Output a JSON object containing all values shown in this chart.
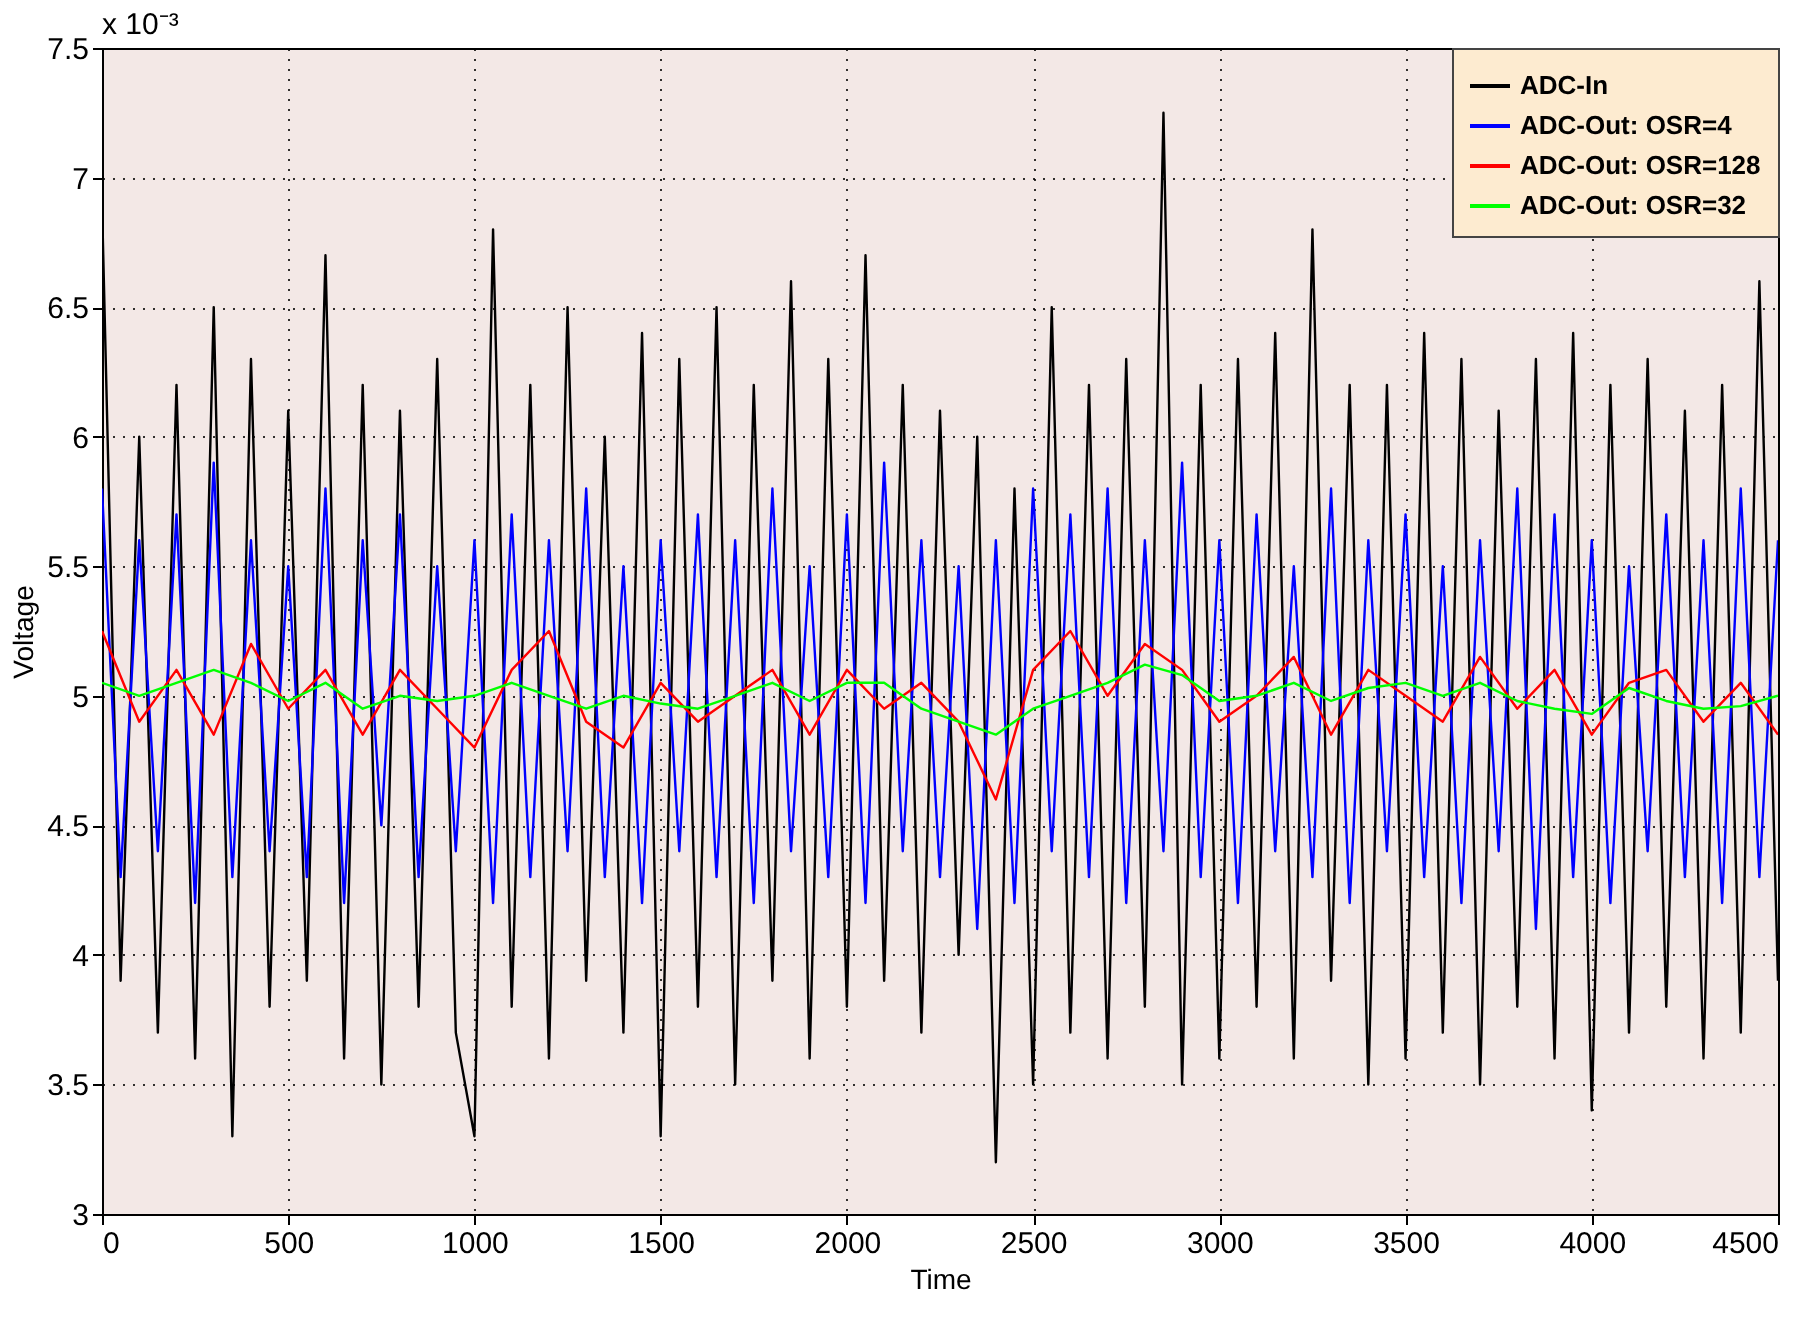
{
  "chart_data": {
    "type": "line",
    "xlabel": "Time",
    "ylabel": "Voltage",
    "annotations": [
      "x 10⁻³"
    ],
    "xlim": [
      0,
      4500
    ],
    "ylim": [
      3,
      7.5
    ],
    "xticks": [
      0,
      500,
      1000,
      1500,
      2000,
      2500,
      3000,
      3500,
      4000,
      4500
    ],
    "yticks": [
      3,
      3.5,
      4,
      4.5,
      5,
      5.5,
      6,
      6.5,
      7,
      7.5
    ],
    "grid": true,
    "legend": "top right",
    "line_style": "solid",
    "marker": "none",
    "series": [
      {
        "name": "ADC-In",
        "color": "#000000",
        "x": [
          0,
          50,
          100,
          150,
          200,
          250,
          300,
          350,
          400,
          450,
          500,
          550,
          600,
          650,
          700,
          750,
          800,
          850,
          900,
          950,
          1000,
          1050,
          1100,
          1150,
          1200,
          1250,
          1300,
          1350,
          1400,
          1450,
          1500,
          1550,
          1600,
          1650,
          1700,
          1750,
          1800,
          1850,
          1900,
          1950,
          2000,
          2050,
          2100,
          2150,
          2200,
          2250,
          2300,
          2350,
          2400,
          2450,
          2500,
          2550,
          2600,
          2650,
          2700,
          2750,
          2800,
          2850,
          2900,
          2950,
          3000,
          3050,
          3100,
          3150,
          3200,
          3250,
          3300,
          3350,
          3400,
          3450,
          3500,
          3550,
          3600,
          3650,
          3700,
          3750,
          3800,
          3850,
          3900,
          3950,
          4000,
          4050,
          4100,
          4150,
          4200,
          4250,
          4300,
          4350,
          4400,
          4450,
          4500
        ],
        "values": [
          6.9,
          3.9,
          6.0,
          3.7,
          6.2,
          3.6,
          6.5,
          3.3,
          6.3,
          3.8,
          6.1,
          3.9,
          6.7,
          3.6,
          6.2,
          3.5,
          6.1,
          3.8,
          6.3,
          3.7,
          3.3,
          6.8,
          3.8,
          6.2,
          3.6,
          6.5,
          3.9,
          6.0,
          3.7,
          6.4,
          3.3,
          6.3,
          3.8,
          6.5,
          3.5,
          6.2,
          3.9,
          6.6,
          3.6,
          6.3,
          3.8,
          6.7,
          3.9,
          6.2,
          3.7,
          6.1,
          4.0,
          6.0,
          3.2,
          5.8,
          3.5,
          6.5,
          3.7,
          6.2,
          3.6,
          6.3,
          3.8,
          7.25,
          3.5,
          6.2,
          3.6,
          6.3,
          3.8,
          6.4,
          3.6,
          6.8,
          3.9,
          6.2,
          3.5,
          6.2,
          3.6,
          6.4,
          3.7,
          6.3,
          3.5,
          6.1,
          3.8,
          6.3,
          3.6,
          6.4,
          3.4,
          6.2,
          3.7,
          6.3,
          3.8,
          6.1,
          3.6,
          6.2,
          3.7,
          6.6,
          3.9
        ]
      },
      {
        "name": "ADC-Out: OSR=4",
        "color": "#0000ff",
        "x": [
          0,
          50,
          100,
          150,
          200,
          250,
          300,
          350,
          400,
          450,
          500,
          550,
          600,
          650,
          700,
          750,
          800,
          850,
          900,
          950,
          1000,
          1050,
          1100,
          1150,
          1200,
          1250,
          1300,
          1350,
          1400,
          1450,
          1500,
          1550,
          1600,
          1650,
          1700,
          1750,
          1800,
          1850,
          1900,
          1950,
          2000,
          2050,
          2100,
          2150,
          2200,
          2250,
          2300,
          2350,
          2400,
          2450,
          2500,
          2550,
          2600,
          2650,
          2700,
          2750,
          2800,
          2850,
          2900,
          2950,
          3000,
          3050,
          3100,
          3150,
          3200,
          3250,
          3300,
          3350,
          3400,
          3450,
          3500,
          3550,
          3600,
          3650,
          3700,
          3750,
          3800,
          3850,
          3900,
          3950,
          4000,
          4050,
          4100,
          4150,
          4200,
          4250,
          4300,
          4350,
          4400,
          4450,
          4500
        ],
        "values": [
          5.8,
          4.3,
          5.6,
          4.4,
          5.7,
          4.2,
          5.9,
          4.3,
          5.6,
          4.4,
          5.5,
          4.3,
          5.8,
          4.2,
          5.6,
          4.5,
          5.7,
          4.3,
          5.5,
          4.4,
          5.6,
          4.2,
          5.7,
          4.3,
          5.6,
          4.4,
          5.8,
          4.3,
          5.5,
          4.2,
          5.6,
          4.4,
          5.7,
          4.3,
          5.6,
          4.2,
          5.8,
          4.4,
          5.5,
          4.3,
          5.7,
          4.2,
          5.9,
          4.4,
          5.6,
          4.3,
          5.5,
          4.1,
          5.6,
          4.2,
          5.8,
          4.4,
          5.7,
          4.3,
          5.8,
          4.2,
          5.6,
          4.4,
          5.9,
          4.3,
          5.6,
          4.2,
          5.7,
          4.4,
          5.5,
          4.3,
          5.8,
          4.2,
          5.6,
          4.4,
          5.7,
          4.3,
          5.5,
          4.2,
          5.6,
          4.4,
          5.8,
          4.1,
          5.7,
          4.3,
          5.6,
          4.2,
          5.5,
          4.4,
          5.7,
          4.3,
          5.6,
          4.2,
          5.8,
          4.3,
          5.6
        ]
      },
      {
        "name": "ADC-Out: OSR=128",
        "color": "#ff0000",
        "x": [
          0,
          100,
          200,
          300,
          400,
          500,
          600,
          700,
          800,
          900,
          1000,
          1100,
          1200,
          1300,
          1400,
          1500,
          1600,
          1700,
          1800,
          1900,
          2000,
          2100,
          2200,
          2300,
          2400,
          2500,
          2600,
          2700,
          2800,
          2900,
          3000,
          3100,
          3200,
          3300,
          3400,
          3500,
          3600,
          3700,
          3800,
          3900,
          4000,
          4100,
          4200,
          4300,
          4400,
          4500
        ],
        "values": [
          5.25,
          4.9,
          5.1,
          4.85,
          5.2,
          4.95,
          5.1,
          4.85,
          5.1,
          4.95,
          4.8,
          5.1,
          5.25,
          4.9,
          4.8,
          5.05,
          4.9,
          5.0,
          5.1,
          4.85,
          5.1,
          4.95,
          5.05,
          4.9,
          4.6,
          5.1,
          5.25,
          5.0,
          5.2,
          5.1,
          4.9,
          5.0,
          5.15,
          4.85,
          5.1,
          5.0,
          4.9,
          5.15,
          4.95,
          5.1,
          4.85,
          5.05,
          5.1,
          4.9,
          5.05,
          4.85
        ]
      },
      {
        "name": "ADC-Out: OSR=32",
        "color": "#00ff00",
        "x": [
          0,
          100,
          200,
          300,
          400,
          500,
          600,
          700,
          800,
          900,
          1000,
          1100,
          1200,
          1300,
          1400,
          1500,
          1600,
          1700,
          1800,
          1900,
          2000,
          2100,
          2200,
          2300,
          2400,
          2500,
          2600,
          2700,
          2800,
          2900,
          3000,
          3100,
          3200,
          3300,
          3400,
          3500,
          3600,
          3700,
          3800,
          3900,
          4000,
          4100,
          4200,
          4300,
          4400,
          4500
        ],
        "values": [
          5.05,
          5.0,
          5.05,
          5.1,
          5.05,
          4.98,
          5.05,
          4.95,
          5.0,
          4.98,
          5.0,
          5.05,
          5.0,
          4.95,
          5.0,
          4.97,
          4.95,
          5.0,
          5.05,
          4.98,
          5.05,
          5.05,
          4.95,
          4.9,
          4.85,
          4.95,
          5.0,
          5.05,
          5.12,
          5.08,
          4.98,
          5.0,
          5.05,
          4.98,
          5.03,
          5.05,
          5.0,
          5.05,
          4.98,
          4.95,
          4.93,
          5.03,
          4.98,
          4.95,
          4.96,
          5.0
        ]
      }
    ]
  }
}
